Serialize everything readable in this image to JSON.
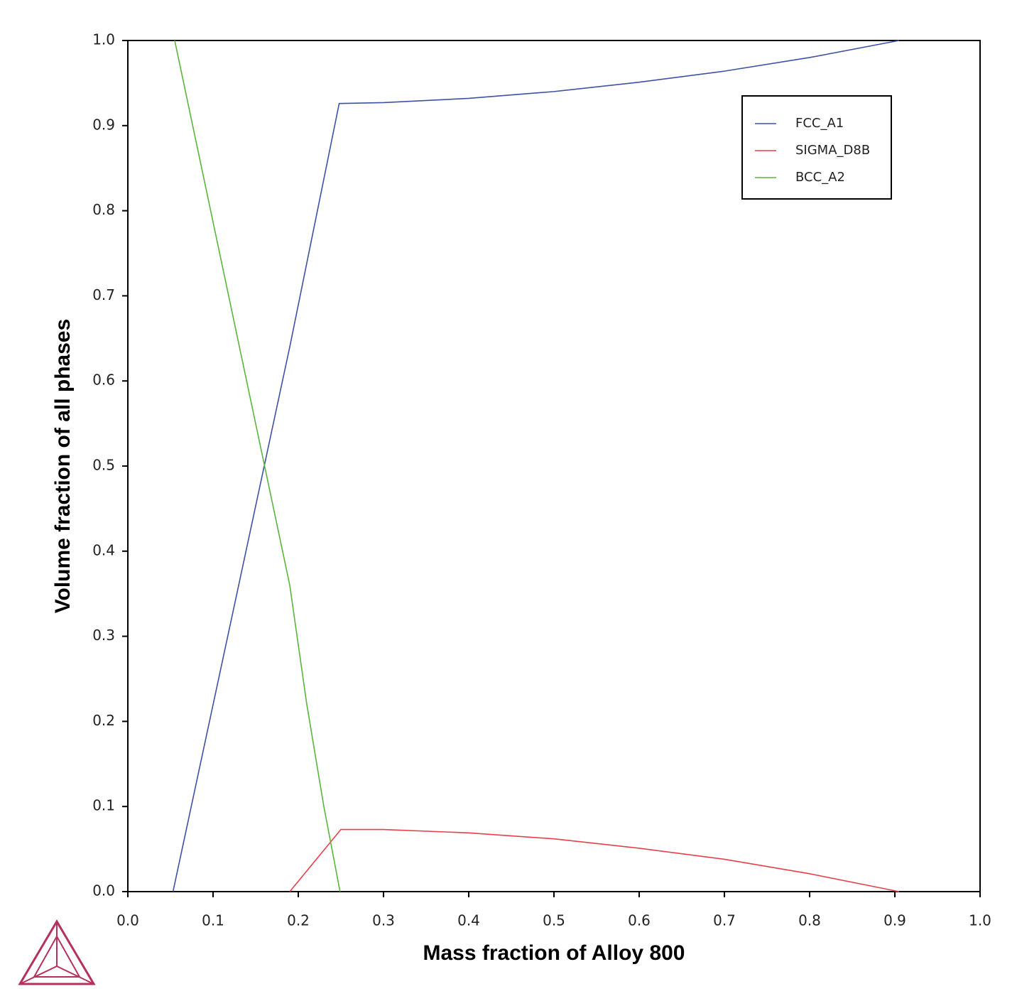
{
  "chart_data": {
    "type": "line",
    "xlabel": "Mass fraction of Alloy 800",
    "ylabel": "Volume fraction of all phases",
    "xlim": [
      0,
      1
    ],
    "ylim": [
      0,
      1
    ],
    "xticks": [
      {
        "value": 0,
        "label": "0.0"
      },
      0.1,
      0.2,
      0.3,
      0.4,
      0.5,
      0.6,
      0.7,
      0.8,
      0.9,
      {
        "value": 1,
        "label": "1.0"
      }
    ],
    "yticks": [
      {
        "value": 0,
        "label": "0.0"
      },
      0.1,
      0.2,
      0.3,
      0.4,
      0.5,
      0.6,
      0.7,
      0.8,
      0.9,
      {
        "value": 1,
        "label": "1.0"
      }
    ],
    "legend": "upper right",
    "series": [
      {
        "name": "FCC_A1",
        "color": "#3f51a5",
        "x": [
          0.053,
          0.19,
          0.248,
          0.3,
          0.4,
          0.5,
          0.6,
          0.7,
          0.8,
          0.905
        ],
        "values": [
          0,
          0.64,
          0.926,
          0.927,
          0.932,
          0.94,
          0.951,
          0.964,
          0.98,
          1.0
        ]
      },
      {
        "name": "SIGMA_D8B",
        "color": "#e8404a",
        "x": [
          0.19,
          0.25,
          0.3,
          0.4,
          0.5,
          0.6,
          0.7,
          0.8,
          0.905
        ],
        "values": [
          0,
          0.073,
          0.073,
          0.069,
          0.062,
          0.051,
          0.038,
          0.021,
          0
        ]
      },
      {
        "name": "BCC_A2",
        "color": "#5ab53c",
        "x": [
          0.055,
          0.19,
          0.21,
          0.23,
          0.249
        ],
        "values": [
          1.0,
          0.36,
          0.22,
          0.1,
          0
        ]
      }
    ]
  }
}
